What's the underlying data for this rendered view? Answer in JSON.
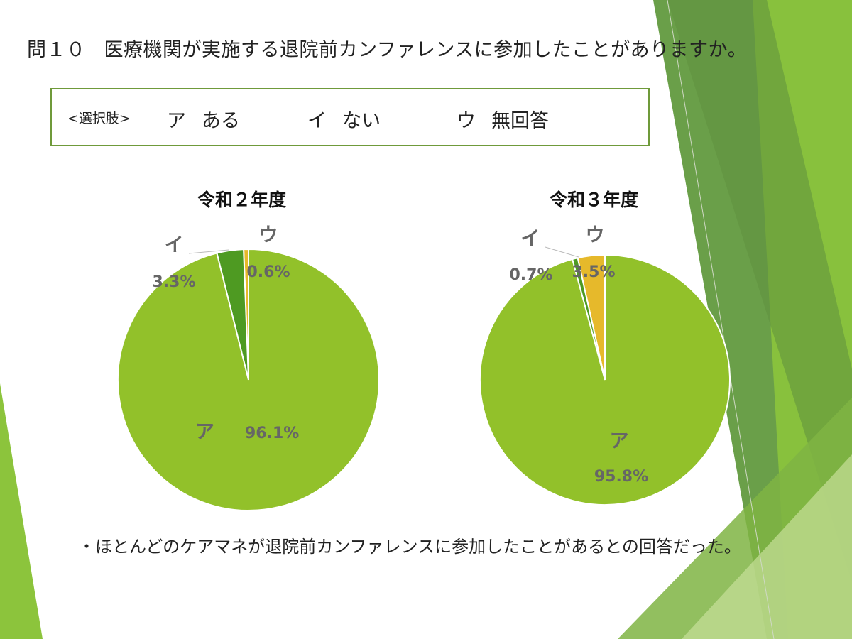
{
  "title": {
    "number": "問１０",
    "question": "医療機関が実施する退院前カンファレンスに参加したことがありますか。"
  },
  "options": {
    "label": "<選択肢>",
    "items": [
      {
        "key": "ア",
        "text": "ある"
      },
      {
        "key": "イ",
        "text": "ない"
      },
      {
        "key": "ウ",
        "text": "無回答"
      }
    ]
  },
  "chart_data": [
    {
      "type": "pie",
      "title": "令和２年度",
      "categories": [
        "ア",
        "イ",
        "ウ"
      ],
      "values": [
        96.1,
        3.3,
        0.6
      ],
      "value_labels": [
        "96.1%",
        "3.3%",
        "0.6%"
      ],
      "colors": [
        "#92c12a",
        "#4e9a22",
        "#e6b92b"
      ],
      "legend": "none"
    },
    {
      "type": "pie",
      "title": "令和３年度",
      "categories": [
        "ア",
        "イ",
        "ウ"
      ],
      "values": [
        95.8,
        0.7,
        3.5
      ],
      "value_labels": [
        "95.8%",
        "0.7%",
        "3.5%"
      ],
      "colors": [
        "#92c12a",
        "#4e9a22",
        "#e6b92b"
      ],
      "legend": "none"
    }
  ],
  "footnote": "・ほとんどのケアマネが退院前カンファレンスに参加したことがあるとの回答だった。"
}
